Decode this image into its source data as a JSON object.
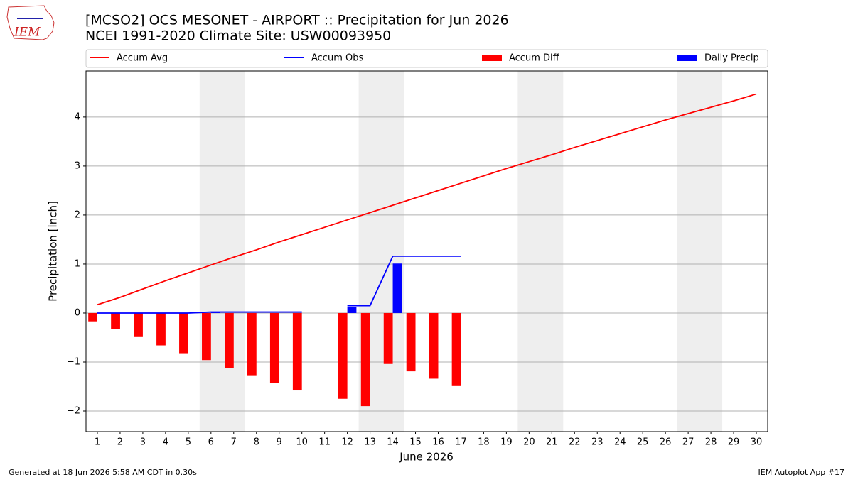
{
  "logo_text": "IEM",
  "chart_data": {
    "type": "combo",
    "title": "[MCSO2] OCS MESONET - AIRPORT :: Precipitation for Jun 2026",
    "subtitle": "NCEI 1991-2020 Climate Site: USW00093950",
    "xlabel": "June 2026",
    "ylabel": "Precipitation [inch]",
    "x": [
      1,
      2,
      3,
      4,
      5,
      6,
      7,
      8,
      9,
      10,
      11,
      12,
      13,
      14,
      15,
      16,
      17,
      18,
      19,
      20,
      21,
      22,
      23,
      24,
      25,
      26,
      27,
      28,
      29,
      30
    ],
    "xlim": [
      0.5,
      30.5
    ],
    "ylim": [
      -2.42,
      4.94
    ],
    "yticks": [
      {
        "value": -2,
        "label": "−2"
      },
      {
        "value": -1,
        "label": "−1"
      },
      0,
      1,
      2,
      3,
      4
    ],
    "grid": true,
    "shaded_ranges": [
      [
        5.5,
        7.5
      ],
      [
        12.5,
        14.5
      ],
      [
        19.5,
        21.5
      ],
      [
        26.5,
        28.5
      ]
    ],
    "series": [
      {
        "name": "Accum Avg",
        "color": "#ff0000",
        "type": "line",
        "values": [
          0.17,
          0.32,
          0.49,
          0.66,
          0.82,
          0.98,
          1.14,
          1.29,
          1.45,
          1.6,
          1.75,
          1.9,
          2.05,
          2.2,
          2.35,
          2.5,
          2.65,
          2.8,
          2.95,
          3.09,
          3.23,
          3.38,
          3.52,
          3.66,
          3.8,
          3.94,
          4.07,
          4.2,
          4.33,
          4.47
        ]
      },
      {
        "name": "Accum Obs",
        "color": "#0000ff",
        "type": "line",
        "values": [
          0,
          0,
          0,
          0,
          0,
          0.02,
          0.02,
          0.02,
          0.02,
          0.02,
          null,
          0.15,
          0.15,
          1.16,
          1.16,
          1.16,
          1.16,
          null,
          null,
          null,
          null,
          null,
          null,
          null,
          null,
          null,
          null,
          null,
          null,
          null
        ]
      },
      {
        "name": "Accum Diff",
        "color": "#ff0000",
        "type": "bar",
        "offset": -0.2,
        "values": [
          -0.17,
          -0.32,
          -0.49,
          -0.66,
          -0.82,
          -0.96,
          -1.12,
          -1.27,
          -1.43,
          -1.58,
          null,
          -1.75,
          -1.9,
          -1.04,
          -1.19,
          -1.34,
          -1.49,
          null,
          null,
          null,
          null,
          null,
          null,
          null,
          null,
          null,
          null,
          null,
          null,
          null
        ]
      },
      {
        "name": "Daily Precip",
        "color": "#0000ff",
        "type": "bar",
        "offset": 0.2,
        "values": [
          0,
          0,
          0,
          0,
          0,
          0.02,
          0,
          0,
          0,
          0,
          null,
          0.12,
          0,
          1.01,
          0,
          0,
          0,
          null,
          null,
          null,
          null,
          null,
          null,
          null,
          null,
          null,
          null,
          null,
          null,
          null
        ]
      }
    ],
    "footer_left": "Generated at 18 Jun 2026 5:58 AM CDT in 0.30s",
    "footer_right": "IEM Autoplot App #17"
  }
}
